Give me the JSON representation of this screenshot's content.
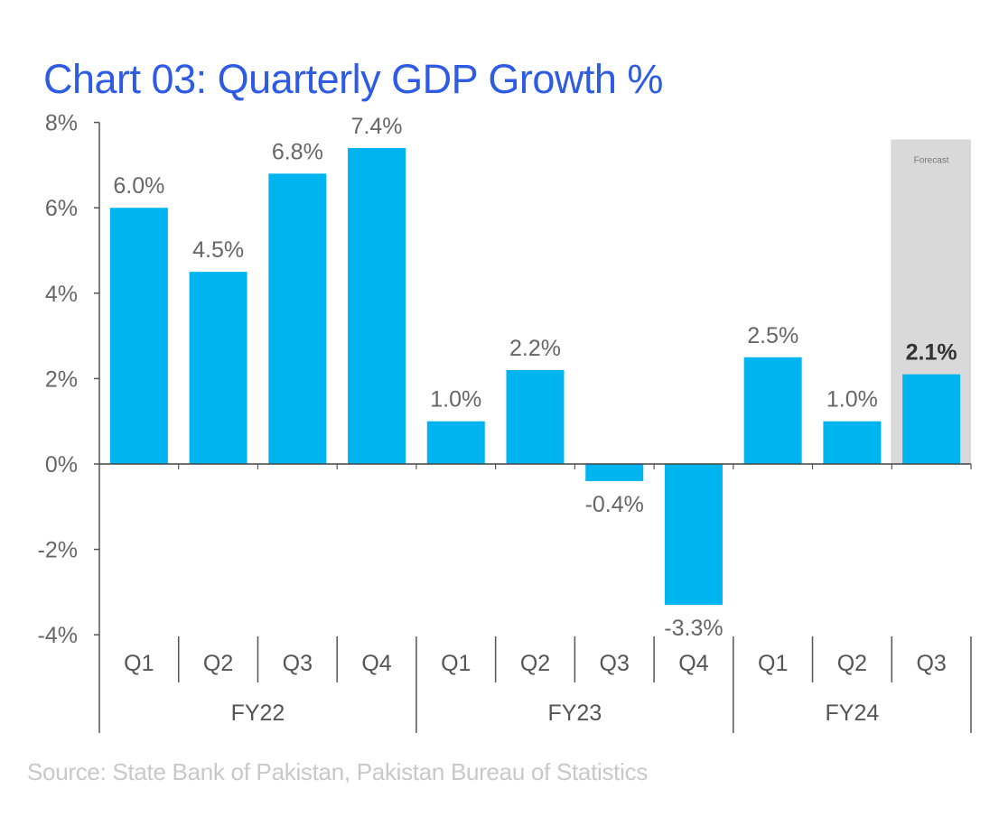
{
  "chart_data": {
    "type": "bar",
    "title": "Chart 03: Quarterly GDP Growth %",
    "xlabel": "",
    "ylabel": "",
    "ylim": [
      -4,
      8
    ],
    "yticks": [
      8,
      6,
      4,
      2,
      0,
      -2,
      -4
    ],
    "ytick_labels": [
      "8%",
      "6%",
      "4%",
      "2%",
      "0%",
      "-2%",
      "-4%"
    ],
    "grid": false,
    "legend": "none",
    "categories": [
      "Q1",
      "Q2",
      "Q3",
      "Q4",
      "Q1",
      "Q2",
      "Q3",
      "Q4",
      "Q1",
      "Q2",
      "Q3"
    ],
    "groups": [
      {
        "label": "FY22",
        "count": 4
      },
      {
        "label": "FY23",
        "count": 4
      },
      {
        "label": "FY24",
        "count": 3
      }
    ],
    "series": [
      {
        "name": "GDP Growth",
        "color": "#00B4F0",
        "values": [
          6.0,
          4.5,
          6.8,
          7.4,
          1.0,
          2.2,
          -0.4,
          -3.3,
          2.5,
          1.0,
          2.1
        ],
        "data_labels": [
          "6.0%",
          "4.5%",
          "6.8%",
          "7.4%",
          "1.0%",
          "2.2%",
          "-0.4%",
          "-3.3%",
          "2.5%",
          "1.0%",
          "2.1%"
        ]
      }
    ],
    "annotations": [
      {
        "type": "shaded-region",
        "label": "Forecast",
        "category_index": 10,
        "color": "#D9D9D9"
      }
    ],
    "highlighted_label_index": 10
  },
  "title": "Chart 03: Quarterly GDP Growth %",
  "source": "Source: State Bank of Pakistan, Pakistan Bureau of Statistics",
  "colors": {
    "title": "#2D5BE3",
    "bar": "#00B4F0",
    "forecast_shade": "#D9D9D9",
    "axis": "#555555"
  }
}
